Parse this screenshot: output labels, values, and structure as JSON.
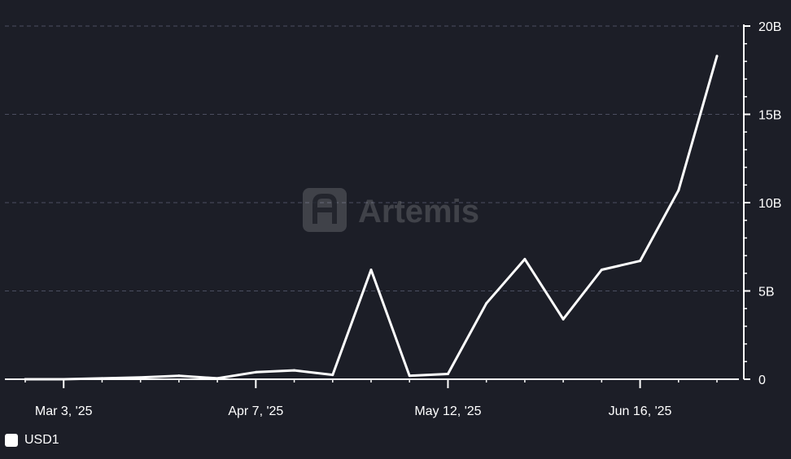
{
  "watermark": "Artemis",
  "chart_data": {
    "type": "line",
    "title": "",
    "xlabel": "",
    "ylabel": "",
    "x": [
      "2025-02-24",
      "2025-03-03",
      "2025-03-10",
      "2025-03-17",
      "2025-03-24",
      "2025-03-31",
      "2025-04-07",
      "2025-04-14",
      "2025-04-21",
      "2025-04-28",
      "2025-05-05",
      "2025-05-12",
      "2025-05-19",
      "2025-05-26",
      "2025-06-02",
      "2025-06-09",
      "2025-06-16",
      "2025-06-23",
      "2025-06-30"
    ],
    "x_ticks": [
      {
        "date": "2025-03-03",
        "label": "Mar 3, '25"
      },
      {
        "date": "2025-04-07",
        "label": "Apr 7, '25"
      },
      {
        "date": "2025-05-12",
        "label": "May 12, '25"
      },
      {
        "date": "2025-06-16",
        "label": "Jun 16, '25"
      }
    ],
    "series": [
      {
        "name": "USD1",
        "color": "#ffffff",
        "values": [
          0,
          0,
          0.05,
          0.1,
          0.2,
          0.05,
          0.4,
          0.5,
          0.25,
          6.2,
          0.2,
          0.3,
          4.3,
          6.8,
          3.4,
          6.2,
          6.7,
          10.7,
          18.3
        ]
      }
    ],
    "y_ticks": [
      {
        "value": 0,
        "label": "0"
      },
      {
        "value": 5,
        "label": "5B"
      },
      {
        "value": 10,
        "label": "10B"
      },
      {
        "value": 15,
        "label": "15B"
      },
      {
        "value": 20,
        "label": "20B"
      }
    ],
    "ylim": [
      0,
      20
    ],
    "y_unit": "B",
    "y_axis_position": "right",
    "grid": true,
    "legend_position": "bottom-left"
  }
}
